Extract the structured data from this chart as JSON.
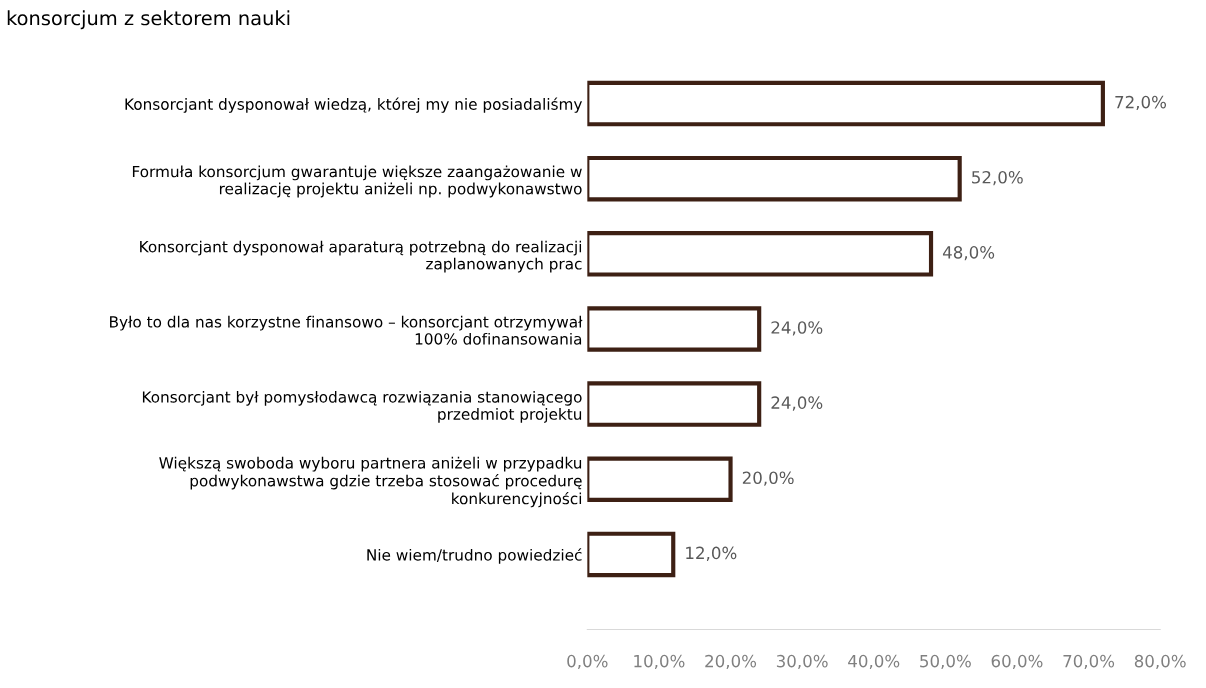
{
  "chart_data": {
    "type": "bar",
    "orientation": "horizontal",
    "title": "konsorcjum z sektorem nauki",
    "categories": [
      "Konsorcjant dysponował wiedzą, której my nie posiadaliśmy",
      "Formuła konsorcjum gwarantuje większe zaangażowanie w\nrealizację projektu aniżeli np. podwykonawstwo",
      "Konsorcjant dysponował aparaturą potrzebną do realizacji\nzaplanowanych prac",
      "Było to dla nas korzystne finansowo – konsorcjant otrzymywał\n100% dofinansowania",
      "Konsorcjant był pomysłodawcą rozwiązania stanowiącego\nprzedmiot projektu",
      "Większą swoboda wyboru partnera aniżeli w przypadku\npodwykonawstwa gdzie trzeba stosować procedurę\nkonkurencyjności",
      "Nie wiem/trudno powiedzieć"
    ],
    "values": [
      72.0,
      52.0,
      48.0,
      24.0,
      24.0,
      20.0,
      12.0
    ],
    "value_labels": [
      "72,0%",
      "52,0%",
      "48,0%",
      "24,0%",
      "24,0%",
      "20,0%",
      "12,0%"
    ],
    "color": "#3d2014",
    "xlim": [
      0,
      80
    ],
    "xticks": [
      {
        "value": 0,
        "label": "0,0%"
      },
      {
        "value": 10,
        "label": "10,0%"
      },
      {
        "value": 20,
        "label": "20,0%"
      },
      {
        "value": 30,
        "label": "30,0%"
      },
      {
        "value": 40,
        "label": "40,0%"
      },
      {
        "value": 50,
        "label": "50,0%"
      },
      {
        "value": 60,
        "label": "60,0%"
      },
      {
        "value": 70,
        "label": "70,0%"
      },
      {
        "value": 80,
        "label": "80,0%"
      }
    ],
    "grid": false,
    "legend": false
  }
}
